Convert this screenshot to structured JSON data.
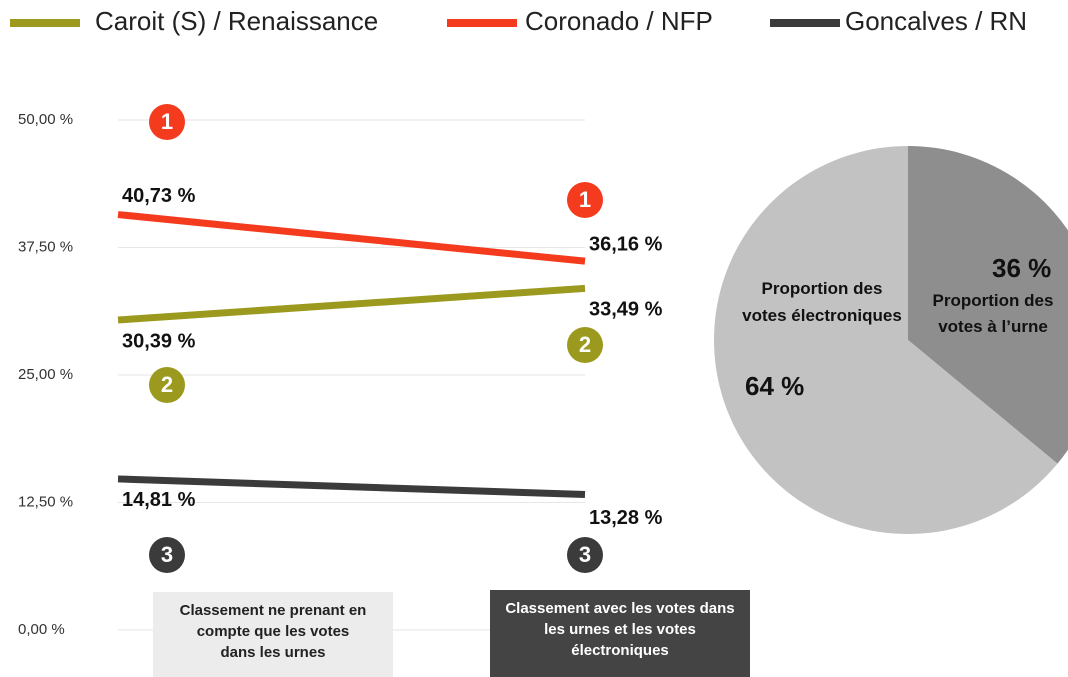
{
  "chart_data": [
    {
      "type": "line",
      "categories": [
        "Classement ne prenant en compte que les votes dans les urnes",
        "Classement avec les votes dans les urnes et les votes électroniques"
      ],
      "series": [
        {
          "name": "Caroit (S) / Renaissance",
          "color": "#9b9a1f",
          "values": [
            30.39,
            33.49
          ],
          "value_labels": [
            "30,39 %",
            "33,49 %"
          ],
          "ranks": [
            "2",
            "2"
          ]
        },
        {
          "name": "Coronado / NFP",
          "color": "#f43b1e",
          "values": [
            40.73,
            36.16
          ],
          "value_labels": [
            "40,73 %",
            "36,16 %"
          ],
          "ranks": [
            "1",
            "1"
          ]
        },
        {
          "name": "Goncalves / RN",
          "color": "#3b3b3b",
          "values": [
            14.81,
            13.28
          ],
          "value_labels": [
            "14,81 %",
            "13,28 %"
          ],
          "ranks": [
            "3",
            "3"
          ]
        }
      ],
      "ylim": [
        0,
        50
      ],
      "yticks": [
        {
          "value": 0,
          "label": "0,00 %"
        },
        {
          "value": 12.5,
          "label": "12,50 %"
        },
        {
          "value": 25,
          "label": "25,00 %"
        },
        {
          "value": 37.5,
          "label": "37,50 %"
        },
        {
          "value": 50,
          "label": "50,00 %"
        }
      ],
      "grid": true
    },
    {
      "type": "pie",
      "categories": [
        "Proportion des votes à l’urne",
        "Proportion des votes électroniques"
      ],
      "values": [
        36,
        64
      ],
      "value_labels": [
        "36 %",
        "64 %"
      ],
      "colors": [
        "#8e8e8e",
        "#c2c2c2"
      ]
    }
  ]
}
